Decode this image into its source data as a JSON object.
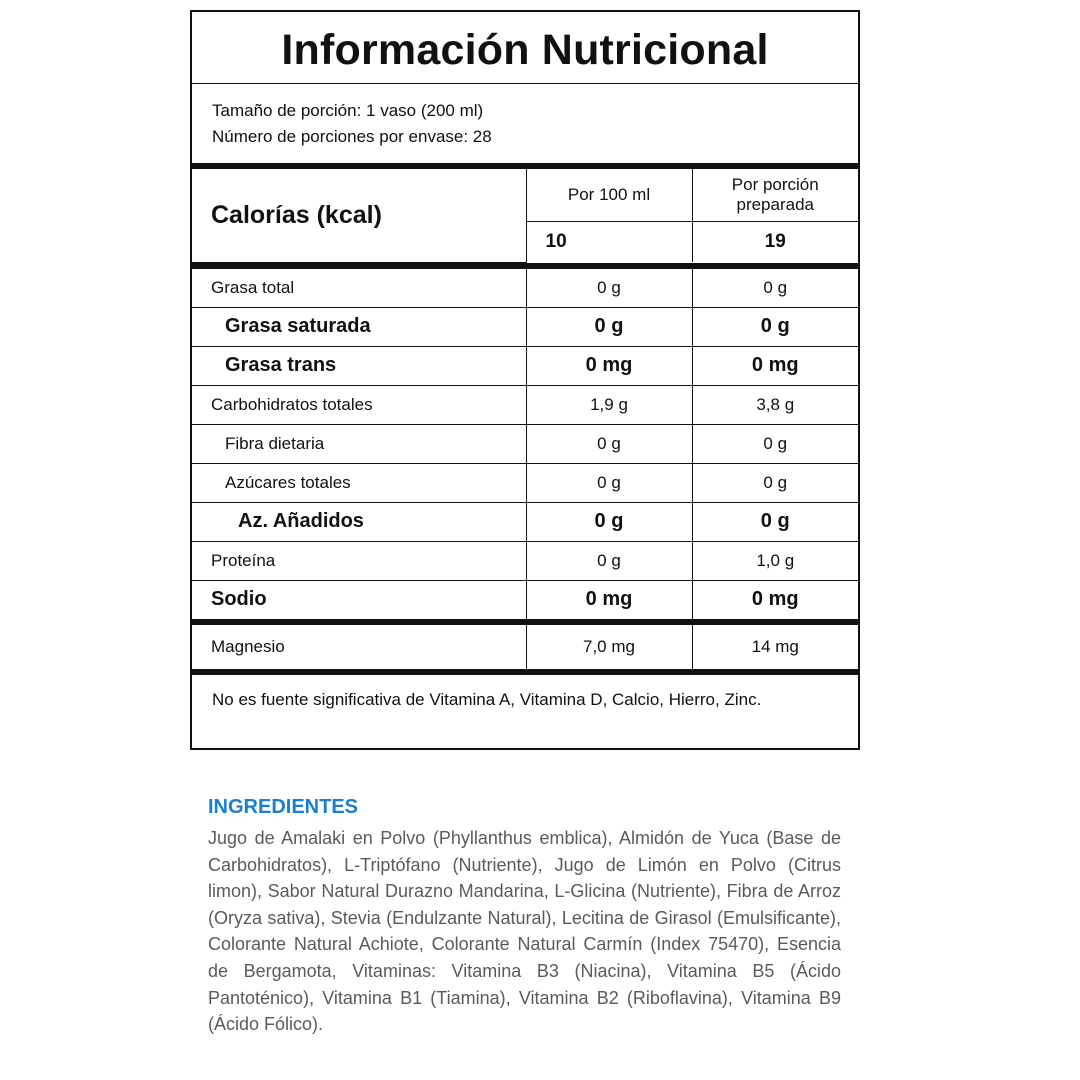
{
  "label": {
    "title": "Información Nutricional",
    "serving_size": "Tamaño de porción: 1 vaso (200 ml)",
    "servings_per_container": "Número de porciones por envase: 28",
    "calories_label": "Calorías (kcal)",
    "col_100ml": "Por 100 ml",
    "col_portion": "Por porción preparada",
    "calories_100ml": "10",
    "calories_portion": "19",
    "rows": [
      {
        "name": "Grasa total",
        "per100": "0 g",
        "portion": "0 g"
      },
      {
        "name": "Grasa saturada",
        "per100": "0 g",
        "portion": "0 g"
      },
      {
        "name": "Grasa trans",
        "per100": "0 mg",
        "portion": "0 mg"
      },
      {
        "name": "Carbohidratos totales",
        "per100": "1,9 g",
        "portion": "3,8 g"
      },
      {
        "name": "Fibra dietaria",
        "per100": "0 g",
        "portion": "0 g"
      },
      {
        "name": "Azúcares totales",
        "per100": "0 g",
        "portion": "0 g"
      },
      {
        "name": "Az. Añadidos",
        "per100": "0 g",
        "portion": "0 g"
      },
      {
        "name": "Proteína",
        "per100": "0 g",
        "portion": "1,0 g"
      },
      {
        "name": "Sodio",
        "per100": "0 mg",
        "portion": "0 mg"
      }
    ],
    "magnesium": {
      "name": "Magnesio",
      "per100": "7,0 mg",
      "portion": "14 mg"
    },
    "footnote": "No es fuente significativa de Vitamina A, Vitamina D, Calcio, Hierro, Zinc."
  },
  "ingredients": {
    "heading": "INGREDIENTES",
    "heading_color": "#1a7fd0",
    "text": "Jugo de Amalaki en Polvo (Phyllanthus emblica), Almidón de Yuca (Base de Carbohidratos), L-Triptófano (Nutriente), Jugo de Limón en Polvo (Citrus limon), Sabor Natural Durazno Mandarina, L-Glicina (Nutriente), Fibra de Arroz (Oryza sativa), Stevia (Endulzante Natural), Lecitina de Girasol (Emulsificante), Colorante Natural Achiote, Colorante Natural Carmín (Index 75470), Esencia de Bergamota, Vitaminas: Vitamina B3 (Niacina), Vitamina B5 (Ácido Pantoténico), Vitamina B1 (Tiamina), Vitamina B2 (Riboflavina), Vitamina B9 (Ácido Fólico)."
  }
}
